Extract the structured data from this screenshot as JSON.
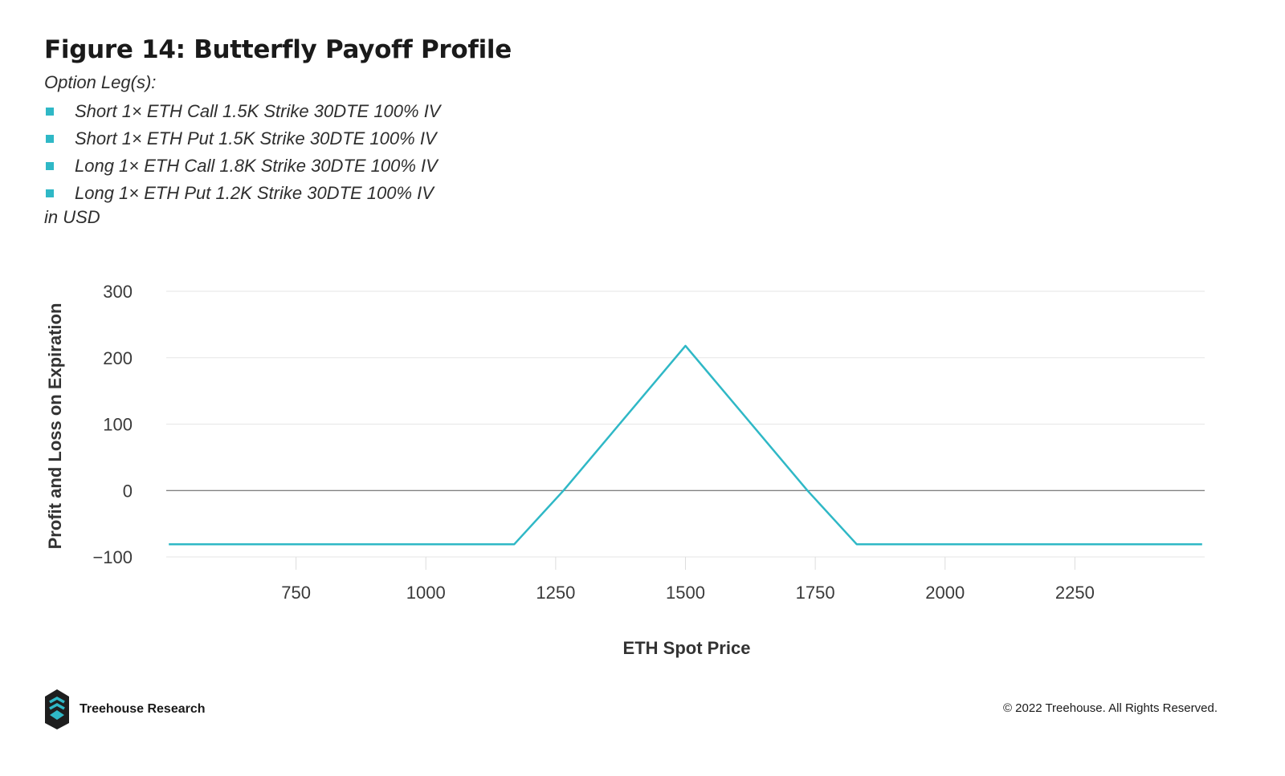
{
  "header": {
    "title": "Figure 14: Butterfly Payoff Profile",
    "subtitle": "Option Leg(s):",
    "legs": [
      "Short 1× ETH Call 1.5K Strike 30DTE 100% IV",
      "Short 1× ETH Put 1.5K Strike 30DTE 100% IV",
      "Long 1× ETH Call 1.8K Strike 30DTE 100% IV",
      "Long 1× ETH Put 1.2K Strike 30DTE 100% IV"
    ],
    "units": "in USD"
  },
  "chart_data": {
    "type": "line",
    "title": "Figure 14: Butterfly Payoff Profile",
    "xlabel": "ETH Spot Price",
    "ylabel": "Profit and Loss on Expiration",
    "xlim": [
      500,
      2500
    ],
    "ylim": [
      -100,
      300
    ],
    "x_ticks": [
      750,
      1000,
      1250,
      1500,
      1750,
      2000,
      2250
    ],
    "y_ticks": [
      -100,
      0,
      100,
      200,
      300
    ],
    "grid": true,
    "series": [
      {
        "color": "#2fb8c6",
        "x": [
          505,
          1170,
          1265,
          1500,
          1735,
          1830,
          2495
        ],
        "y": [
          -81,
          -81,
          0,
          218,
          0,
          -81,
          -81
        ]
      }
    ]
  },
  "footer": {
    "brand": "Treehouse Research",
    "copyright": "© 2022 Treehouse. All Rights Reserved."
  },
  "colors": {
    "accent": "#2fb8c6",
    "logo_dark": "#1e1e1e",
    "grid": "#e6e6e6",
    "zero_line": "#555555"
  }
}
